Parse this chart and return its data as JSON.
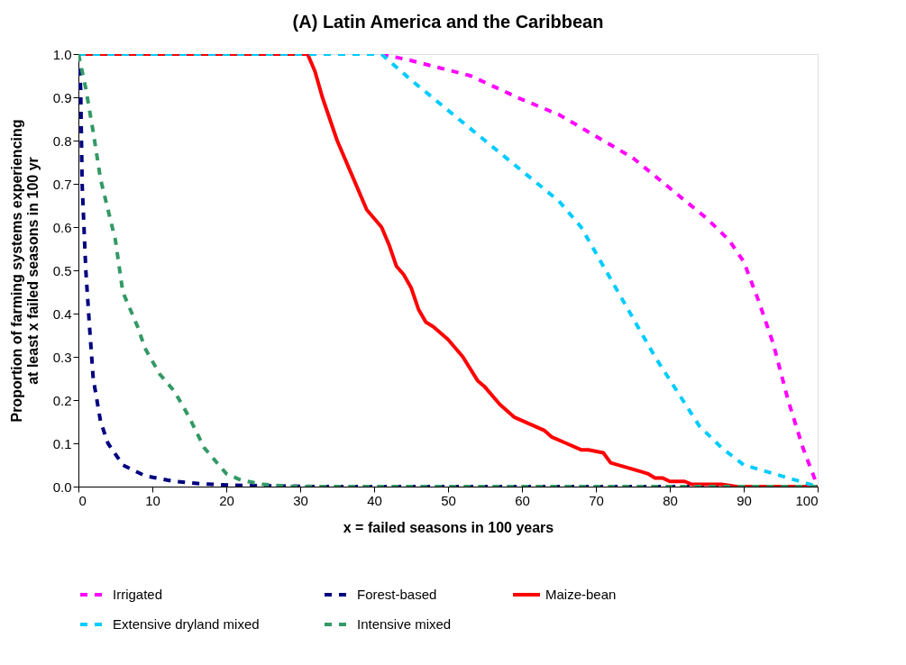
{
  "chart_data": {
    "type": "line",
    "title": "(A) Latin America and the Caribbean",
    "xlabel": "x = failed seasons in 100 years",
    "ylabel": "Proportion of farming systems experiencing at least x failed seasons in 100 yr",
    "xlim": [
      0,
      100
    ],
    "xticks": [
      0,
      10,
      20,
      30,
      40,
      50,
      60,
      70,
      80,
      90,
      100
    ],
    "ylim": [
      0,
      1
    ],
    "yticks": [
      {
        "value": 0,
        "label": "0.0"
      },
      0.1,
      0.2,
      0.3,
      0.4,
      0.5,
      0.6,
      0.7,
      0.8,
      0.9,
      {
        "value": 1,
        "label": "1.0"
      }
    ],
    "grid": false,
    "legend": "bottom",
    "marker": "none",
    "series": [
      {
        "name": "Irrigated",
        "color": "#ff00ff",
        "line_style": "dashed",
        "x": [
          0,
          41,
          45,
          53,
          60,
          65,
          70,
          75,
          80,
          85,
          88,
          90,
          92,
          94,
          96,
          98,
          100
        ],
        "values": [
          1,
          1,
          0.985,
          0.95,
          0.895,
          0.86,
          0.81,
          0.76,
          0.69,
          0.62,
          0.57,
          0.52,
          0.43,
          0.33,
          0.2,
          0.09,
          0
        ]
      },
      {
        "name": "Forest-based",
        "color": "#000080",
        "line_style": "dashed",
        "x": [
          0,
          0.3,
          0.5,
          1,
          1.5,
          2,
          3,
          4,
          6,
          9,
          13,
          17,
          21,
          25,
          32,
          100
        ],
        "values": [
          1,
          0.92,
          0.7,
          0.5,
          0.37,
          0.25,
          0.15,
          0.1,
          0.05,
          0.025,
          0.012,
          0.006,
          0.003,
          0.002,
          0,
          0
        ]
      },
      {
        "name": "Maize-bean",
        "color": "#ff0000",
        "line_style": "solid",
        "x": [
          0,
          31,
          32,
          33,
          35,
          37,
          39,
          41,
          42,
          43,
          44,
          45,
          46,
          47,
          48,
          50,
          52,
          54,
          55,
          57,
          59,
          61,
          63,
          64,
          66,
          68,
          69,
          71,
          72,
          74,
          76,
          77,
          78,
          79,
          80,
          82,
          83,
          87,
          89,
          100
        ],
        "values": [
          1,
          1,
          0.96,
          0.9,
          0.8,
          0.72,
          0.64,
          0.6,
          0.56,
          0.51,
          0.49,
          0.46,
          0.41,
          0.38,
          0.37,
          0.34,
          0.3,
          0.245,
          0.23,
          0.19,
          0.16,
          0.145,
          0.13,
          0.115,
          0.1,
          0.085,
          0.085,
          0.078,
          0.055,
          0.045,
          0.035,
          0.03,
          0.02,
          0.02,
          0.012,
          0.012,
          0.005,
          0.005,
          0,
          0
        ]
      },
      {
        "name": "Extensive dryland  mixed",
        "color": "#00ccff",
        "line_style": "dashed",
        "x": [
          0,
          41,
          45,
          50,
          55,
          60,
          65,
          68,
          70,
          72,
          75,
          78,
          81,
          84,
          87,
          90,
          93,
          96,
          100
        ],
        "values": [
          1,
          1,
          0.94,
          0.87,
          0.8,
          0.73,
          0.66,
          0.6,
          0.54,
          0.48,
          0.39,
          0.3,
          0.22,
          0.14,
          0.09,
          0.05,
          0.035,
          0.02,
          0
        ]
      },
      {
        "name": "Intensive mixed",
        "color": "#339966",
        "line_style": "dashed",
        "x": [
          0,
          1,
          2,
          3,
          5,
          6,
          8,
          9,
          11,
          13,
          15,
          17,
          19,
          20,
          22,
          25,
          28,
          30,
          100
        ],
        "values": [
          1,
          0.92,
          0.82,
          0.71,
          0.57,
          0.45,
          0.37,
          0.32,
          0.26,
          0.22,
          0.16,
          0.09,
          0.05,
          0.03,
          0.015,
          0.005,
          0.001,
          0,
          0
        ]
      }
    ]
  }
}
